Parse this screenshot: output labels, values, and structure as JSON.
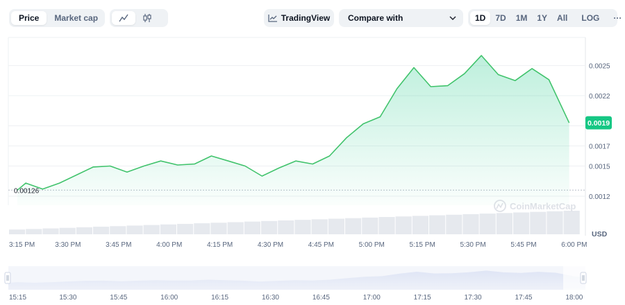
{
  "toolbar": {
    "price_label": "Price",
    "marketcap_label": "Market cap",
    "line_icon": "line-chart-icon",
    "candle_icon": "candlestick-icon",
    "tradingview_label": "TradingView",
    "compare_label": "Compare with",
    "ranges": [
      "1D",
      "7D",
      "1M",
      "1Y",
      "All"
    ],
    "active_range": "1D",
    "log_label": "LOG",
    "more_label": "···"
  },
  "colors": {
    "line": "#41c36c",
    "badge": "#16c784",
    "grid": "#eef0f3",
    "text": "#58667e",
    "volume": "#e6e9ee",
    "navigator": "#e6ebf8"
  },
  "chart_data": {
    "type": "area",
    "title": "",
    "currency_label": "USD",
    "current_price_label": "0.0019",
    "open_price_label": "0.00126",
    "open_price": 0.00126,
    "watermark": "CoinMarketCap",
    "ylim": [
      0.00111,
      0.00278
    ],
    "y_ticks": [
      0.0012,
      0.0015,
      0.0017,
      0.0019,
      0.0022,
      0.0025
    ],
    "y_tick_labels": [
      "0.0012",
      "0.0015",
      "0.0017",
      "0.0019",
      "0.0022",
      "0.0025"
    ],
    "x_tick_labels": [
      "3:15 PM",
      "3:30 PM",
      "3:45 PM",
      "4:00 PM",
      "4:15 PM",
      "4:30 PM",
      "4:45 PM",
      "5:00 PM",
      "5:15 PM",
      "5:30 PM",
      "5:45 PM",
      "6:00 PM"
    ],
    "x_ticks_minutes": [
      0,
      15,
      30,
      45,
      60,
      75,
      90,
      105,
      120,
      135,
      150,
      165
    ],
    "series": [
      {
        "name": "Price",
        "x_minutes": [
          0,
          2.5,
          7.5,
          12.5,
          17.5,
          22.5,
          27.5,
          32.5,
          37.5,
          42.5,
          47.5,
          52.5,
          57.5,
          62.5,
          67.5,
          72.5,
          77.5,
          82.5,
          87.5,
          92.5,
          97.5,
          102.5,
          107.5,
          112.5,
          117.5,
          122.5,
          127.5,
          132.5,
          137.5,
          142.5,
          147.5,
          152.5,
          157.5,
          163.5
        ],
        "values": [
          0.00126,
          0.00133,
          0.00127,
          0.00133,
          0.00141,
          0.00149,
          0.0015,
          0.00144,
          0.0015,
          0.00155,
          0.00151,
          0.00152,
          0.0016,
          0.00155,
          0.0015,
          0.0014,
          0.00148,
          0.00155,
          0.00152,
          0.0016,
          0.00178,
          0.00192,
          0.00199,
          0.00227,
          0.00248,
          0.00229,
          0.0023,
          0.00242,
          0.0026,
          0.00241,
          0.00235,
          0.00247,
          0.00236,
          0.00193
        ]
      }
    ],
    "volume": [
      1,
      2,
      3,
      4,
      5,
      6,
      7,
      8,
      9,
      10,
      11,
      12,
      13,
      14,
      15,
      16,
      17,
      18,
      19,
      20,
      21,
      22,
      23,
      24,
      25,
      26,
      27,
      28,
      29,
      30,
      31,
      32,
      33,
      34
    ],
    "navigator_tick_labels": [
      "15:15",
      "15:30",
      "15:45",
      "16:00",
      "16:15",
      "16:30",
      "16:45",
      "17:00",
      "17:15",
      "17:30",
      "17:45",
      "18:00"
    ]
  }
}
